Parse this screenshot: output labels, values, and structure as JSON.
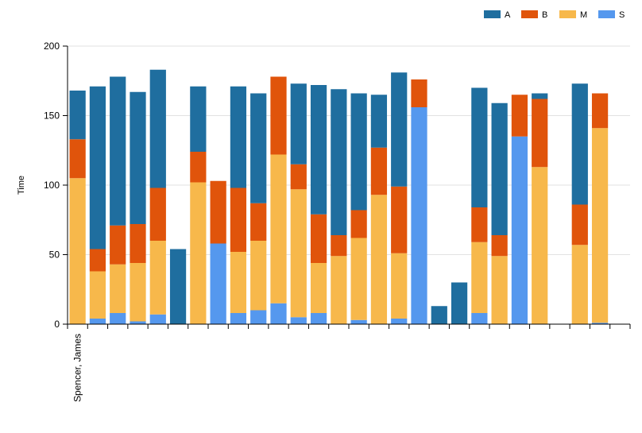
{
  "chart_data": {
    "type": "bar",
    "stacked": true,
    "title": "",
    "xlabel": "",
    "ylabel": "Time",
    "ylim": [
      0,
      200
    ],
    "yticks": [
      0,
      50,
      100,
      150,
      200
    ],
    "grid": true,
    "legend_position": "top-right",
    "categories": [
      "Spencer, James",
      "",
      "",
      "",
      "",
      "",
      "",
      "",
      "",
      "",
      "",
      "",
      "",
      "",
      "",
      "",
      "",
      "",
      "",
      "",
      "",
      "",
      "",
      "",
      "",
      "",
      "",
      ""
    ],
    "visible_category_labels": [
      "Spencer, James"
    ],
    "series": [
      {
        "name": "S",
        "color": "#5598ee",
        "values": [
          0,
          4,
          8,
          2,
          7,
          0,
          0,
          58,
          8,
          10,
          15,
          5,
          8,
          0,
          3,
          0,
          4,
          156,
          0,
          0,
          8,
          0,
          135,
          0,
          0,
          0,
          1,
          0
        ]
      },
      {
        "name": "M",
        "color": "#f7b84b",
        "values": [
          105,
          34,
          35,
          42,
          53,
          0,
          102,
          0,
          44,
          50,
          107,
          92,
          36,
          49,
          59,
          93,
          47,
          0,
          0,
          0,
          51,
          49,
          0,
          113,
          0,
          57,
          140,
          0
        ]
      },
      {
        "name": "B",
        "color": "#e0540b",
        "values": [
          28,
          16,
          28,
          28,
          38,
          0,
          22,
          45,
          46,
          27,
          56,
          18,
          35,
          15,
          20,
          34,
          48,
          20,
          0,
          0,
          25,
          15,
          30,
          49,
          0,
          29,
          25,
          0
        ]
      },
      {
        "name": "A",
        "color": "#1f6e9f",
        "values": [
          35,
          117,
          107,
          95,
          85,
          54,
          47,
          0,
          73,
          79,
          0,
          58,
          93,
          105,
          84,
          38,
          82,
          0,
          13,
          30,
          86,
          95,
          0,
          4,
          0,
          87,
          0,
          0
        ]
      }
    ],
    "legend_order": [
      "A",
      "B",
      "M",
      "S"
    ]
  }
}
